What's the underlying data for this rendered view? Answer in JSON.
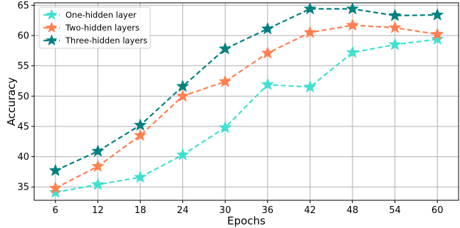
{
  "chart_data": {
    "type": "line",
    "xlabel": "Epochs",
    "ylabel": "Accuracy",
    "x": [
      6,
      12,
      18,
      24,
      30,
      36,
      42,
      48,
      54,
      60
    ],
    "xlim": [
      3,
      63
    ],
    "ylim": [
      32.8,
      65.4
    ],
    "yticks": [
      35,
      40,
      45,
      50,
      55,
      60,
      65
    ],
    "grid": true,
    "legend_position": "top-left",
    "series": [
      {
        "name": "One-hidden layer",
        "color": "#40e0d0",
        "marker": "star",
        "linestyle": "dashed",
        "values": [
          34.1,
          35.4,
          36.6,
          40.3,
          44.8,
          51.9,
          51.5,
          57.2,
          58.5,
          59.4
        ]
      },
      {
        "name": "Two-hidden layers",
        "color": "#ff7f50",
        "marker": "star",
        "linestyle": "dashed",
        "values": [
          34.8,
          38.4,
          43.5,
          50.0,
          52.4,
          57.1,
          60.5,
          61.7,
          61.3,
          60.2
        ]
      },
      {
        "name": "Three-hidden layers",
        "color": "#008080",
        "marker": "star",
        "linestyle": "dashed",
        "values": [
          37.7,
          40.9,
          45.2,
          51.6,
          57.8,
          61.1,
          64.4,
          64.4,
          63.3,
          63.4
        ]
      }
    ]
  }
}
